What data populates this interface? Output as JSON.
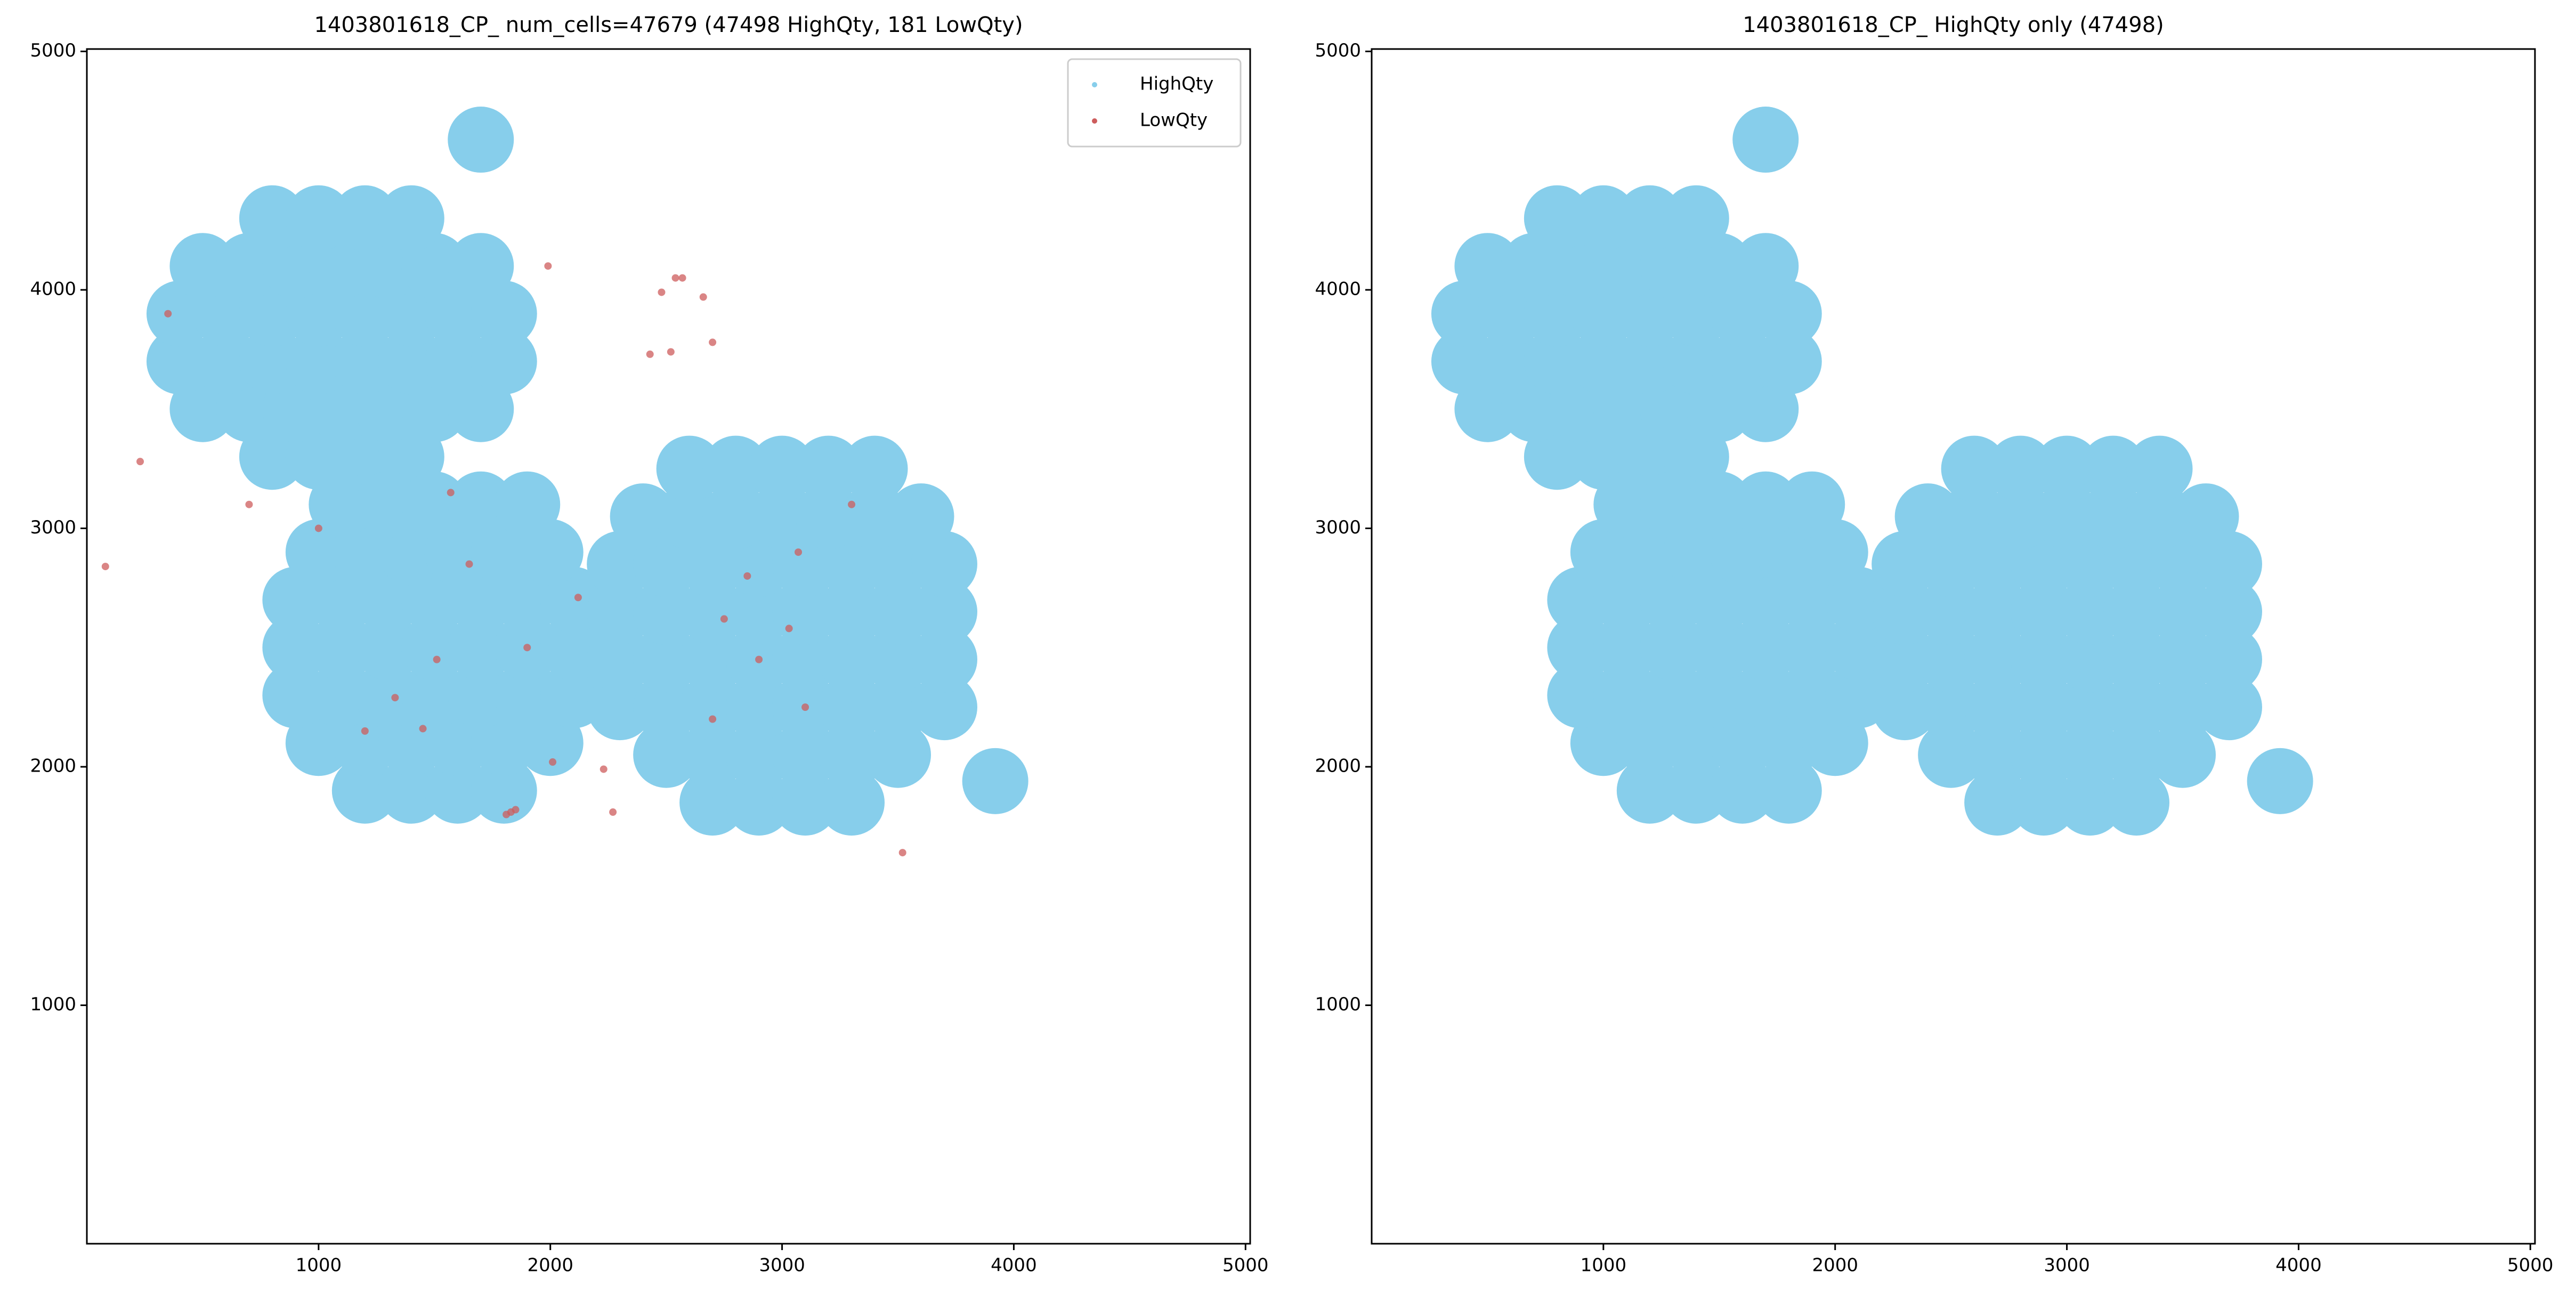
{
  "chart_data": [
    {
      "type": "scatter",
      "title": "1403801618_CP_ num_cells=47679 (47498 HighQty, 181 LowQty)",
      "xlim": [
        0,
        5020
      ],
      "ylim": [
        0,
        5010
      ],
      "xticks": [
        1000,
        2000,
        3000,
        4000,
        5000
      ],
      "yticks": [
        1000,
        2000,
        3000,
        4000,
        5000
      ],
      "legend": "upper right",
      "series": [
        {
          "name": "HighQty",
          "color": "#87ceeb",
          "x": [
            800,
            1000,
            1200,
            1400,
            500,
            700,
            900,
            1100,
            1300,
            1500,
            1700,
            400,
            600,
            800,
            1000,
            1200,
            1400,
            1600,
            1800,
            400,
            600,
            800,
            1000,
            1200,
            1400,
            1600,
            1800,
            500,
            700,
            900,
            1100,
            1300,
            1500,
            1700,
            800,
            1000,
            1200,
            1400,
            1200,
            1400,
            1600,
            1800,
            1000,
            1200,
            1400,
            1600,
            1800,
            2000,
            900,
            1100,
            1300,
            1500,
            1700,
            1900,
            2100,
            900,
            1100,
            1300,
            1500,
            1700,
            1900,
            2100,
            900,
            1100,
            1300,
            1500,
            1700,
            1900,
            2100,
            1000,
            1200,
            1400,
            1600,
            1800,
            2000,
            1100,
            1300,
            1500,
            1700,
            1900,
            2700,
            2900,
            3100,
            3300,
            2500,
            2700,
            2900,
            3100,
            3300,
            3500,
            2300,
            2500,
            2700,
            2900,
            3100,
            3300,
            3500,
            3700,
            2300,
            2500,
            2700,
            2900,
            3100,
            3300,
            3500,
            3700,
            2300,
            2500,
            2700,
            2900,
            3100,
            3300,
            3500,
            3700,
            2300,
            2500,
            2700,
            2900,
            3100,
            3300,
            3500,
            3700,
            2400,
            2600,
            2800,
            3000,
            3200,
            3400,
            3600,
            2600,
            2800,
            3000,
            3200,
            3400,
            3920,
            1700
          ],
          "y": [
            3300,
            3300,
            3300,
            3300,
            3500,
            3500,
            3500,
            3500,
            3500,
            3500,
            3500,
            3700,
            3700,
            3700,
            3700,
            3700,
            3700,
            3700,
            3700,
            3900,
            3900,
            3900,
            3900,
            3900,
            3900,
            3900,
            3900,
            4100,
            4100,
            4100,
            4100,
            4100,
            4100,
            4100,
            4300,
            4300,
            4300,
            4300,
            1900,
            1900,
            1900,
            1900,
            2100,
            2100,
            2100,
            2100,
            2100,
            2100,
            2300,
            2300,
            2300,
            2300,
            2300,
            2300,
            2300,
            2500,
            2500,
            2500,
            2500,
            2500,
            2500,
            2500,
            2700,
            2700,
            2700,
            2700,
            2700,
            2700,
            2700,
            2900,
            2900,
            2900,
            2900,
            2900,
            2900,
            3100,
            3100,
            3100,
            3100,
            3100,
            1850,
            1850,
            1850,
            1850,
            2050,
            2050,
            2050,
            2050,
            2050,
            2050,
            2250,
            2250,
            2250,
            2250,
            2250,
            2250,
            2250,
            2250,
            2450,
            2450,
            2450,
            2450,
            2450,
            2450,
            2450,
            2450,
            2650,
            2650,
            2650,
            2650,
            2650,
            2650,
            2650,
            2650,
            2850,
            2850,
            2850,
            2850,
            2850,
            2850,
            2850,
            2850,
            3050,
            3050,
            3050,
            3050,
            3050,
            3050,
            3050,
            3250,
            3250,
            3250,
            3250,
            3250,
            1940,
            4630
          ]
        },
        {
          "name": "LowQty",
          "color": "#cd5c5c",
          "x": [
            80,
            230,
            2540,
            2570,
            2480,
            2660,
            2700,
            2520,
            2430,
            1830,
            1850,
            1810,
            2270,
            3520,
            1330,
            1510,
            1450,
            1200,
            2900,
            2750,
            3030,
            2850,
            3070,
            2700,
            3100,
            1900,
            2010,
            2120,
            1000,
            700,
            1650,
            3300,
            1990,
            350,
            1570,
            2230
          ],
          "y": [
            2840,
            3280,
            4050,
            4050,
            3990,
            3970,
            3780,
            3740,
            3730,
            1810,
            1820,
            1800,
            1810,
            1640,
            2290,
            2450,
            2160,
            2150,
            2450,
            2620,
            2580,
            2800,
            2900,
            2200,
            2250,
            2500,
            2020,
            2710,
            3000,
            3100,
            2850,
            3100,
            4100,
            3900,
            3150,
            1990
          ]
        }
      ]
    },
    {
      "type": "scatter",
      "title": "1403801618_CP_ HighQty only (47498)",
      "xlim": [
        0,
        5020
      ],
      "ylim": [
        0,
        5010
      ],
      "xticks": [
        1000,
        2000,
        3000,
        4000,
        5000
      ],
      "yticks": [
        1000,
        2000,
        3000,
        4000,
        5000
      ],
      "series": [
        {
          "color": "#87ceeb",
          "x": [
            800,
            1000,
            1200,
            1400,
            500,
            700,
            900,
            1100,
            1300,
            1500,
            1700,
            400,
            600,
            800,
            1000,
            1200,
            1400,
            1600,
            1800,
            400,
            600,
            800,
            1000,
            1200,
            1400,
            1600,
            1800,
            500,
            700,
            900,
            1100,
            1300,
            1500,
            1700,
            800,
            1000,
            1200,
            1400,
            1200,
            1400,
            1600,
            1800,
            1000,
            1200,
            1400,
            1600,
            1800,
            2000,
            900,
            1100,
            1300,
            1500,
            1700,
            1900,
            2100,
            900,
            1100,
            1300,
            1500,
            1700,
            1900,
            2100,
            900,
            1100,
            1300,
            1500,
            1700,
            1900,
            2100,
            1000,
            1200,
            1400,
            1600,
            1800,
            2000,
            1100,
            1300,
            1500,
            1700,
            1900,
            2700,
            2900,
            3100,
            3300,
            2500,
            2700,
            2900,
            3100,
            3300,
            3500,
            2300,
            2500,
            2700,
            2900,
            3100,
            3300,
            3500,
            3700,
            2300,
            2500,
            2700,
            2900,
            3100,
            3300,
            3500,
            3700,
            2300,
            2500,
            2700,
            2900,
            3100,
            3300,
            3500,
            3700,
            2300,
            2500,
            2700,
            2900,
            3100,
            3300,
            3500,
            3700,
            2400,
            2600,
            2800,
            3000,
            3200,
            3400,
            3600,
            2600,
            2800,
            3000,
            3200,
            3400,
            3920,
            1700
          ],
          "y": [
            3300,
            3300,
            3300,
            3300,
            3500,
            3500,
            3500,
            3500,
            3500,
            3500,
            3500,
            3700,
            3700,
            3700,
            3700,
            3700,
            3700,
            3700,
            3700,
            3900,
            3900,
            3900,
            3900,
            3900,
            3900,
            3900,
            3900,
            4100,
            4100,
            4100,
            4100,
            4100,
            4100,
            4100,
            4300,
            4300,
            4300,
            4300,
            1900,
            1900,
            1900,
            1900,
            2100,
            2100,
            2100,
            2100,
            2100,
            2100,
            2300,
            2300,
            2300,
            2300,
            2300,
            2300,
            2300,
            2500,
            2500,
            2500,
            2500,
            2500,
            2500,
            2500,
            2700,
            2700,
            2700,
            2700,
            2700,
            2700,
            2700,
            2900,
            2900,
            2900,
            2900,
            2900,
            2900,
            3100,
            3100,
            3100,
            3100,
            3100,
            1850,
            1850,
            1850,
            1850,
            2050,
            2050,
            2050,
            2050,
            2050,
            2050,
            2250,
            2250,
            2250,
            2250,
            2250,
            2250,
            2250,
            2250,
            2450,
            2450,
            2450,
            2450,
            2450,
            2450,
            2450,
            2450,
            2650,
            2650,
            2650,
            2650,
            2650,
            2650,
            2650,
            2650,
            2850,
            2850,
            2850,
            2850,
            2850,
            2850,
            2850,
            2850,
            3050,
            3050,
            3050,
            3050,
            3050,
            3050,
            3050,
            3250,
            3250,
            3250,
            3250,
            3250,
            1940,
            4630
          ]
        }
      ]
    }
  ]
}
